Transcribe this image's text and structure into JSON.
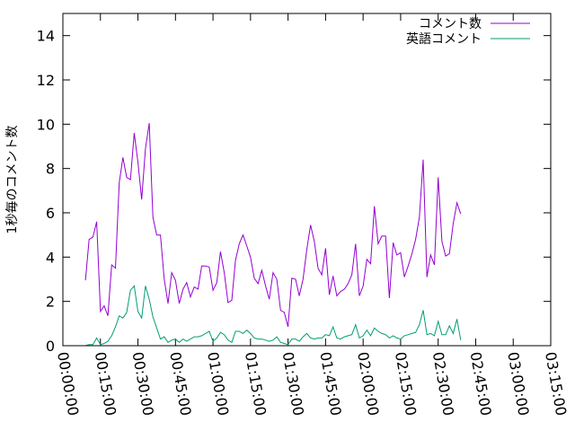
{
  "chart_data": {
    "type": "line",
    "ylabel": "1秒毎のコメント数",
    "xlabel": "",
    "title": "",
    "xlim": [
      "00:00:00",
      "03:15:00"
    ],
    "ylim": [
      0,
      15
    ],
    "x_ticks": [
      "00:00:00",
      "00:15:00",
      "00:30:00",
      "00:45:00",
      "01:00:00",
      "01:15:00",
      "01:30:00",
      "01:45:00",
      "02:00:00",
      "02:15:00",
      "02:30:00",
      "02:45:00",
      "03:00:00",
      "03:15:00"
    ],
    "y_ticks": [
      0,
      2,
      4,
      6,
      8,
      10,
      12,
      14
    ],
    "grid": false,
    "legend_position": "top-right",
    "x_interval": "00:01:30",
    "x_start": "00:09:00",
    "series": [
      {
        "name": "コメント数",
        "color": "#9400d3",
        "values": [
          2.95,
          4.8,
          4.9,
          5.6,
          1.55,
          1.8,
          1.35,
          3.65,
          3.5,
          7.35,
          8.5,
          7.6,
          7.5,
          9.6,
          8.3,
          6.6,
          8.9,
          10.05,
          5.8,
          5.0,
          5.0,
          3.0,
          1.9,
          3.3,
          2.95,
          1.9,
          2.55,
          2.85,
          2.2,
          2.65,
          2.55,
          3.6,
          3.6,
          3.55,
          2.5,
          2.85,
          4.25,
          3.3,
          1.95,
          2.05,
          3.85,
          4.6,
          5.0,
          4.5,
          4.0,
          3.05,
          2.8,
          3.4,
          2.7,
          2.1,
          3.3,
          3.0,
          1.6,
          1.5,
          0.85,
          3.05,
          3.0,
          2.25,
          3.0,
          4.35,
          5.45,
          4.7,
          3.5,
          3.2,
          4.4,
          2.3,
          3.15,
          2.25,
          2.45,
          2.55,
          2.8,
          3.2,
          4.6,
          2.25,
          2.7,
          3.9,
          3.7,
          6.3,
          4.6,
          4.95,
          4.95,
          2.15,
          4.65,
          4.1,
          4.2,
          3.1,
          3.6,
          4.15,
          4.8,
          5.8,
          8.4,
          3.1,
          4.1,
          3.65,
          7.6,
          4.7,
          4.05,
          4.15,
          5.5,
          6.45,
          5.95
        ]
      },
      {
        "name": "英語コメント",
        "color": "#009e73",
        "values": [
          0.0,
          0.05,
          0.05,
          0.35,
          0.05,
          0.1,
          0.2,
          0.45,
          0.85,
          1.35,
          1.25,
          1.5,
          2.5,
          2.7,
          1.55,
          1.25,
          2.7,
          2.1,
          1.3,
          0.8,
          0.3,
          0.4,
          0.15,
          0.25,
          0.3,
          0.15,
          0.3,
          0.2,
          0.3,
          0.4,
          0.4,
          0.45,
          0.55,
          0.65,
          0.2,
          0.35,
          0.6,
          0.5,
          0.25,
          0.15,
          0.65,
          0.65,
          0.55,
          0.7,
          0.55,
          0.35,
          0.3,
          0.3,
          0.25,
          0.2,
          0.25,
          0.4,
          0.15,
          0.1,
          0.05,
          0.3,
          0.3,
          0.2,
          0.4,
          0.55,
          0.35,
          0.3,
          0.35,
          0.35,
          0.5,
          0.45,
          0.85,
          0.35,
          0.3,
          0.4,
          0.45,
          0.5,
          0.95,
          0.35,
          0.45,
          0.7,
          0.45,
          0.8,
          0.65,
          0.55,
          0.5,
          0.35,
          0.45,
          0.35,
          0.3,
          0.45,
          0.5,
          0.55,
          0.6,
          0.95,
          1.6,
          0.5,
          0.55,
          0.45,
          1.1,
          0.5,
          0.5,
          0.9,
          0.55,
          1.2,
          0.25
        ]
      }
    ]
  }
}
